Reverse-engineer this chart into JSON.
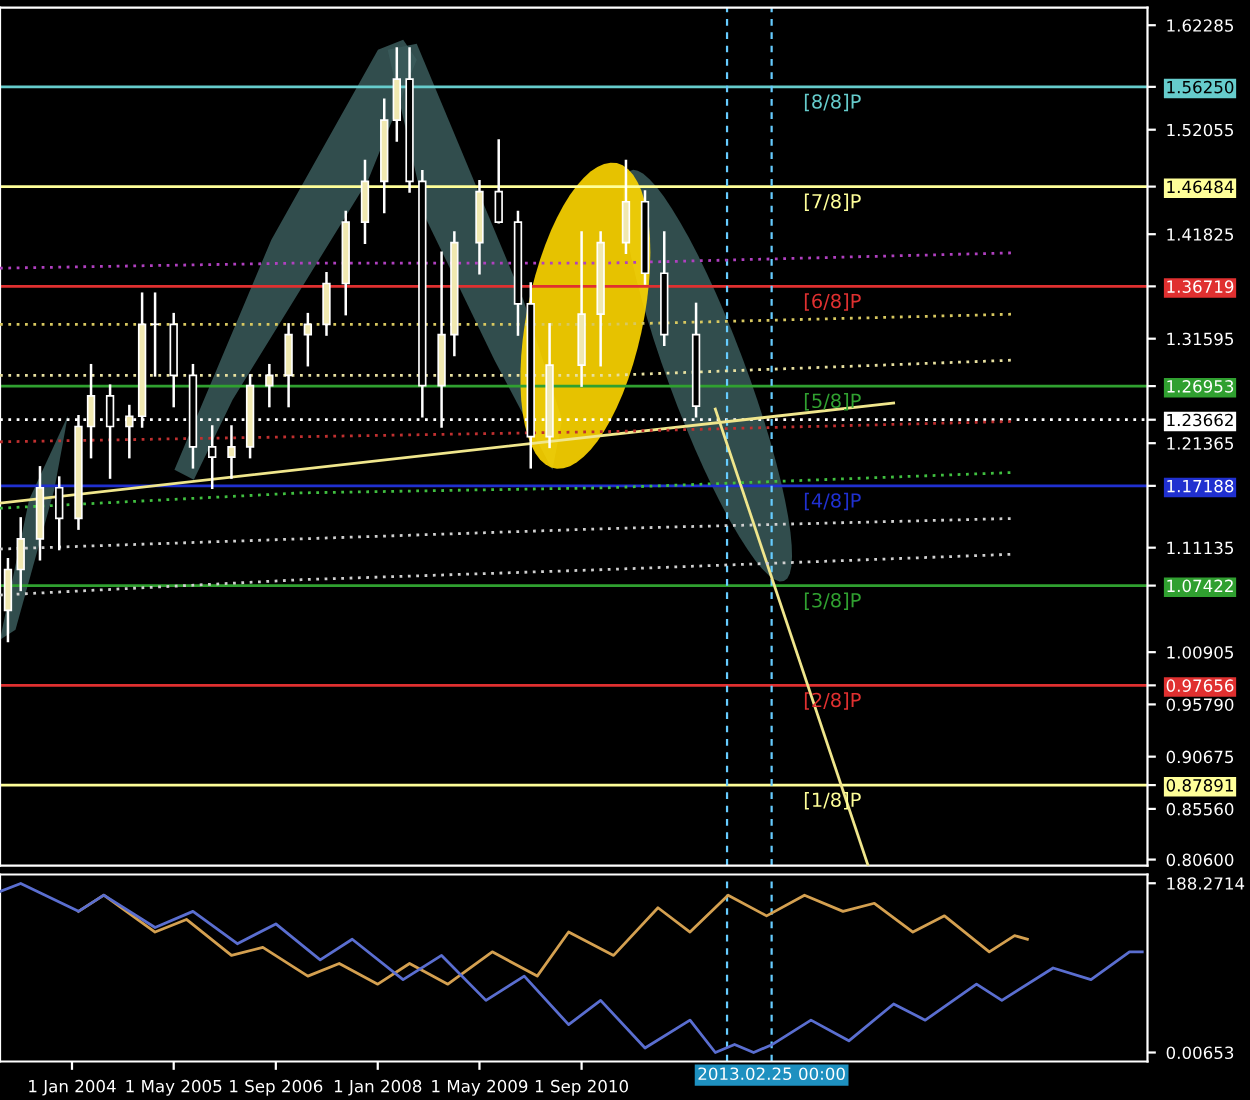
{
  "chart_data": [
    {
      "type": "candlestick",
      "tick_labels": "y",
      "grid": false,
      "x": [
        "2003-03",
        "2003-05",
        "2003-08",
        "2003-11",
        "2004-02",
        "2004-04",
        "2004-07",
        "2004-10",
        "2004-12",
        "2005-02",
        "2005-05",
        "2005-08",
        "2005-11",
        "2006-02",
        "2006-05",
        "2006-08",
        "2006-11",
        "2007-02",
        "2007-05",
        "2007-08",
        "2007-11",
        "2008-02",
        "2008-04",
        "2008-06",
        "2008-08",
        "2008-11",
        "2009-01",
        "2009-05",
        "2009-08",
        "2009-11",
        "2010-01",
        "2010-04",
        "2010-09",
        "2010-12",
        "2011-04",
        "2011-07",
        "2011-10",
        "2012-03"
      ],
      "ohlc": [
        [
          1.05,
          1.1,
          1.02,
          1.09
        ],
        [
          1.09,
          1.14,
          1.07,
          1.12
        ],
        [
          1.12,
          1.19,
          1.1,
          1.17
        ],
        [
          1.17,
          1.18,
          1.11,
          1.14
        ],
        [
          1.14,
          1.24,
          1.13,
          1.23
        ],
        [
          1.23,
          1.29,
          1.2,
          1.26
        ],
        [
          1.26,
          1.27,
          1.18,
          1.23
        ],
        [
          1.23,
          1.25,
          1.2,
          1.24
        ],
        [
          1.24,
          1.36,
          1.23,
          1.33
        ],
        [
          1.33,
          1.36,
          1.28,
          1.33
        ],
        [
          1.33,
          1.34,
          1.25,
          1.28
        ],
        [
          1.28,
          1.29,
          1.19,
          1.21
        ],
        [
          1.21,
          1.23,
          1.17,
          1.2
        ],
        [
          1.2,
          1.23,
          1.18,
          1.21
        ],
        [
          1.21,
          1.28,
          1.2,
          1.27
        ],
        [
          1.27,
          1.29,
          1.25,
          1.28
        ],
        [
          1.28,
          1.33,
          1.25,
          1.32
        ],
        [
          1.32,
          1.34,
          1.29,
          1.33
        ],
        [
          1.33,
          1.38,
          1.32,
          1.37
        ],
        [
          1.37,
          1.44,
          1.34,
          1.43
        ],
        [
          1.43,
          1.49,
          1.41,
          1.47
        ],
        [
          1.47,
          1.55,
          1.44,
          1.53
        ],
        [
          1.53,
          1.6,
          1.51,
          1.57
        ],
        [
          1.57,
          1.6,
          1.46,
          1.47
        ],
        [
          1.47,
          1.48,
          1.24,
          1.27
        ],
        [
          1.27,
          1.4,
          1.23,
          1.32
        ],
        [
          1.32,
          1.42,
          1.3,
          1.41
        ],
        [
          1.41,
          1.47,
          1.38,
          1.46
        ],
        [
          1.46,
          1.51,
          1.43,
          1.43
        ],
        [
          1.43,
          1.44,
          1.32,
          1.35
        ],
        [
          1.35,
          1.37,
          1.19,
          1.22
        ],
        [
          1.22,
          1.33,
          1.21,
          1.29
        ],
        [
          1.29,
          1.42,
          1.27,
          1.34
        ],
        [
          1.34,
          1.42,
          1.29,
          1.41
        ],
        [
          1.41,
          1.49,
          1.4,
          1.45
        ],
        [
          1.45,
          1.46,
          1.37,
          1.38
        ],
        [
          1.38,
          1.42,
          1.31,
          1.32
        ],
        [
          1.32,
          1.35,
          1.24,
          1.25
        ]
      ],
      "xlim": [
        "2003-01-22",
        "2018-01-26"
      ],
      "ylim": [
        0.8,
        1.64
      ],
      "yticks": [
        1.62285,
        {
          "value": 1.5625,
          "label": "1.56250"
        },
        1.52055,
        1.46484,
        1.41825,
        1.36719,
        1.31595,
        1.26953,
        1.23662,
        1.21365,
        1.17188,
        1.11135,
        1.07422,
        1.00905,
        0.97656,
        {
          "value": 0.9579,
          "label": "0.95790"
        },
        0.90675,
        0.87891,
        {
          "value": 0.8556,
          "label": "0.85560"
        },
        {
          "value": 0.806,
          "label": "0.80600"
        }
      ],
      "series": [
        {
          "type": "line",
          "color": "#f0e68c",
          "line_style": "solid",
          "x": [
            "2003-01-22",
            "2014-10"
          ],
          "values": [
            1.155,
            1.253
          ]
        },
        {
          "type": "line",
          "color": "#f0e68c",
          "line_style": "solid",
          "x": [
            "2012-06",
            "2014-06"
          ],
          "values": [
            1.247,
            0.8
          ]
        },
        {
          "type": "line",
          "color": "#b040c0",
          "line_style": "dotted",
          "x": [
            "2003-01-22",
            "2007-01",
            "2011-01",
            "2016-05"
          ],
          "values": [
            1.385,
            1.39,
            1.39,
            1.4
          ]
        },
        {
          "type": "line",
          "color": "#d8c860",
          "line_style": "dotted",
          "x": [
            "2003-01-22",
            "2007-01",
            "2011-01",
            "2016-05"
          ],
          "values": [
            1.33,
            1.33,
            1.33,
            1.34
          ]
        },
        {
          "type": "line",
          "color": "#e8e0a0",
          "line_style": "dotted",
          "x": [
            "2003-01-22",
            "2007-01",
            "2011-01",
            "2016-05"
          ],
          "values": [
            1.28,
            1.28,
            1.28,
            1.295
          ]
        },
        {
          "type": "line",
          "color": "#c03030",
          "line_style": "dotted",
          "x": [
            "2003-01-22",
            "2007-01",
            "2011-01",
            "2016-05"
          ],
          "values": [
            1.215,
            1.22,
            1.225,
            1.235
          ]
        },
        {
          "type": "line",
          "color": "#40c040",
          "line_style": "dotted",
          "x": [
            "2003-01-22",
            "2007-01",
            "2011-01",
            "2016-05"
          ],
          "values": [
            1.15,
            1.165,
            1.17,
            1.185
          ]
        },
        {
          "type": "line",
          "color": "#d0d0d0",
          "line_style": "dotted",
          "x": [
            "2003-01-22",
            "2007-01",
            "2011-01",
            "2016-05"
          ],
          "values": [
            1.11,
            1.12,
            1.13,
            1.14
          ]
        },
        {
          "type": "line",
          "color": "#d0d0d0",
          "line_style": "dotted",
          "x": [
            "2003-01-22",
            "2007-01",
            "2011-01",
            "2016-05"
          ],
          "values": [
            1.065,
            1.08,
            1.09,
            1.105
          ]
        }
      ],
      "ref_lines": [
        {
          "axis": "y",
          "value": 1.5625,
          "label": "[8/8]P",
          "color": "#66cccc"
        },
        {
          "axis": "y",
          "value": 1.46484,
          "label": "[7/8]P",
          "color": "#ffff99"
        },
        {
          "axis": "y",
          "value": 1.36719,
          "label": "[6/8]P",
          "color": "#e03030"
        },
        {
          "axis": "y",
          "value": 1.26953,
          "label": "[5/8]P",
          "color": "#30a030"
        },
        {
          "axis": "y",
          "value": 1.23662,
          "label": null,
          "color": "#ffffff",
          "line_style": "dotted"
        },
        {
          "axis": "y",
          "value": 1.17188,
          "label": "[4/8]P",
          "color": "#2030d0"
        },
        {
          "axis": "y",
          "value": 1.07422,
          "label": "[3/8]P",
          "color": "#30a030"
        },
        {
          "axis": "y",
          "value": 0.97656,
          "label": "[2/8]P",
          "color": "#e03030"
        },
        {
          "axis": "y",
          "value": 0.87891,
          "label": "[1/8]P",
          "color": "#ffff99"
        },
        {
          "axis": "x",
          "value": "2012-07-27",
          "label": null,
          "color": "#66ccff",
          "line_style": "dashed"
        },
        {
          "axis": "x",
          "value": "2013-02-25",
          "label": null,
          "color": "#66ccff",
          "line_style": "dashed"
        }
      ]
    },
    {
      "type": "line",
      "grid": false,
      "xlim": [
        "2003-01-22",
        "2018-01-26"
      ],
      "ylim": [
        -10,
        198
      ],
      "yticks": [
        188.2714,
        {
          "value": 0.00653,
          "label": "0.00653"
        }
      ],
      "xticks": [
        {
          "value": "2004-01-01",
          "label": "1 Jan 2004"
        },
        {
          "value": "2005-05-01",
          "label": "1 May 2005"
        },
        {
          "value": "2006-09-01",
          "label": "1 Sep 2006"
        },
        {
          "value": "2008-01-01",
          "label": "1 Jan 2008"
        },
        {
          "value": "2009-05-01",
          "label": "1 May 2009"
        },
        {
          "value": "2010-09-01",
          "label": "1 Sep 2010"
        }
      ],
      "series": [
        {
          "color": "#d4a050",
          "x": [
            "2004-02",
            "2004-06",
            "2005-02",
            "2005-07",
            "2006-02",
            "2006-07",
            "2007-02",
            "2007-07",
            "2008-01",
            "2008-06",
            "2008-12",
            "2009-07",
            "2010-02",
            "2010-07",
            "2011-02",
            "2011-09",
            "2012-02",
            "2012-08",
            "2013-02",
            "2013-08",
            "2014-02",
            "2014-07",
            "2015-01",
            "2015-06",
            "2016-01",
            "2016-05",
            "2016-07"
          ],
          "values": [
            157,
            175,
            134,
            148,
            108,
            117,
            85,
            99,
            76,
            99,
            76,
            112,
            85,
            134,
            108,
            161,
            134,
            175,
            152,
            175,
            157,
            166,
            134,
            152,
            112,
            130,
            126
          ]
        },
        {
          "color": "#5a6ed0",
          "x": [
            "2003-01-22",
            "2003-05",
            "2004-02",
            "2004-06",
            "2005-02",
            "2005-08",
            "2006-03",
            "2006-09",
            "2007-04",
            "2007-09",
            "2008-05",
            "2008-11",
            "2009-06",
            "2009-12",
            "2010-07",
            "2010-12",
            "2011-07",
            "2012-02",
            "2012-06",
            "2012-09",
            "2012-12",
            "2013-03",
            "2013-09",
            "2014-03",
            "2014-10",
            "2015-03",
            "2015-11",
            "2016-03",
            "2016-11",
            "2017-05",
            "2017-11",
            "2018-01"
          ],
          "values": [
            179,
            188,
            157,
            175,
            139,
            157,
            121,
            143,
            103,
            126,
            81,
            108,
            58,
            85,
            31,
            58,
            5,
            36,
            0,
            9,
            0,
            9,
            36,
            13,
            54,
            36,
            76,
            58,
            94,
            81,
            112,
            112
          ]
        }
      ],
      "ref_lines": [
        {
          "axis": "x",
          "value": "2012-07-27",
          "label": null,
          "color": "#66ccff",
          "line_style": "dashed"
        },
        {
          "axis": "x",
          "value": "2013-02-25",
          "label": "2013.02.25 00:00",
          "color": "#66ccff",
          "line_style": "dashed"
        }
      ]
    }
  ]
}
